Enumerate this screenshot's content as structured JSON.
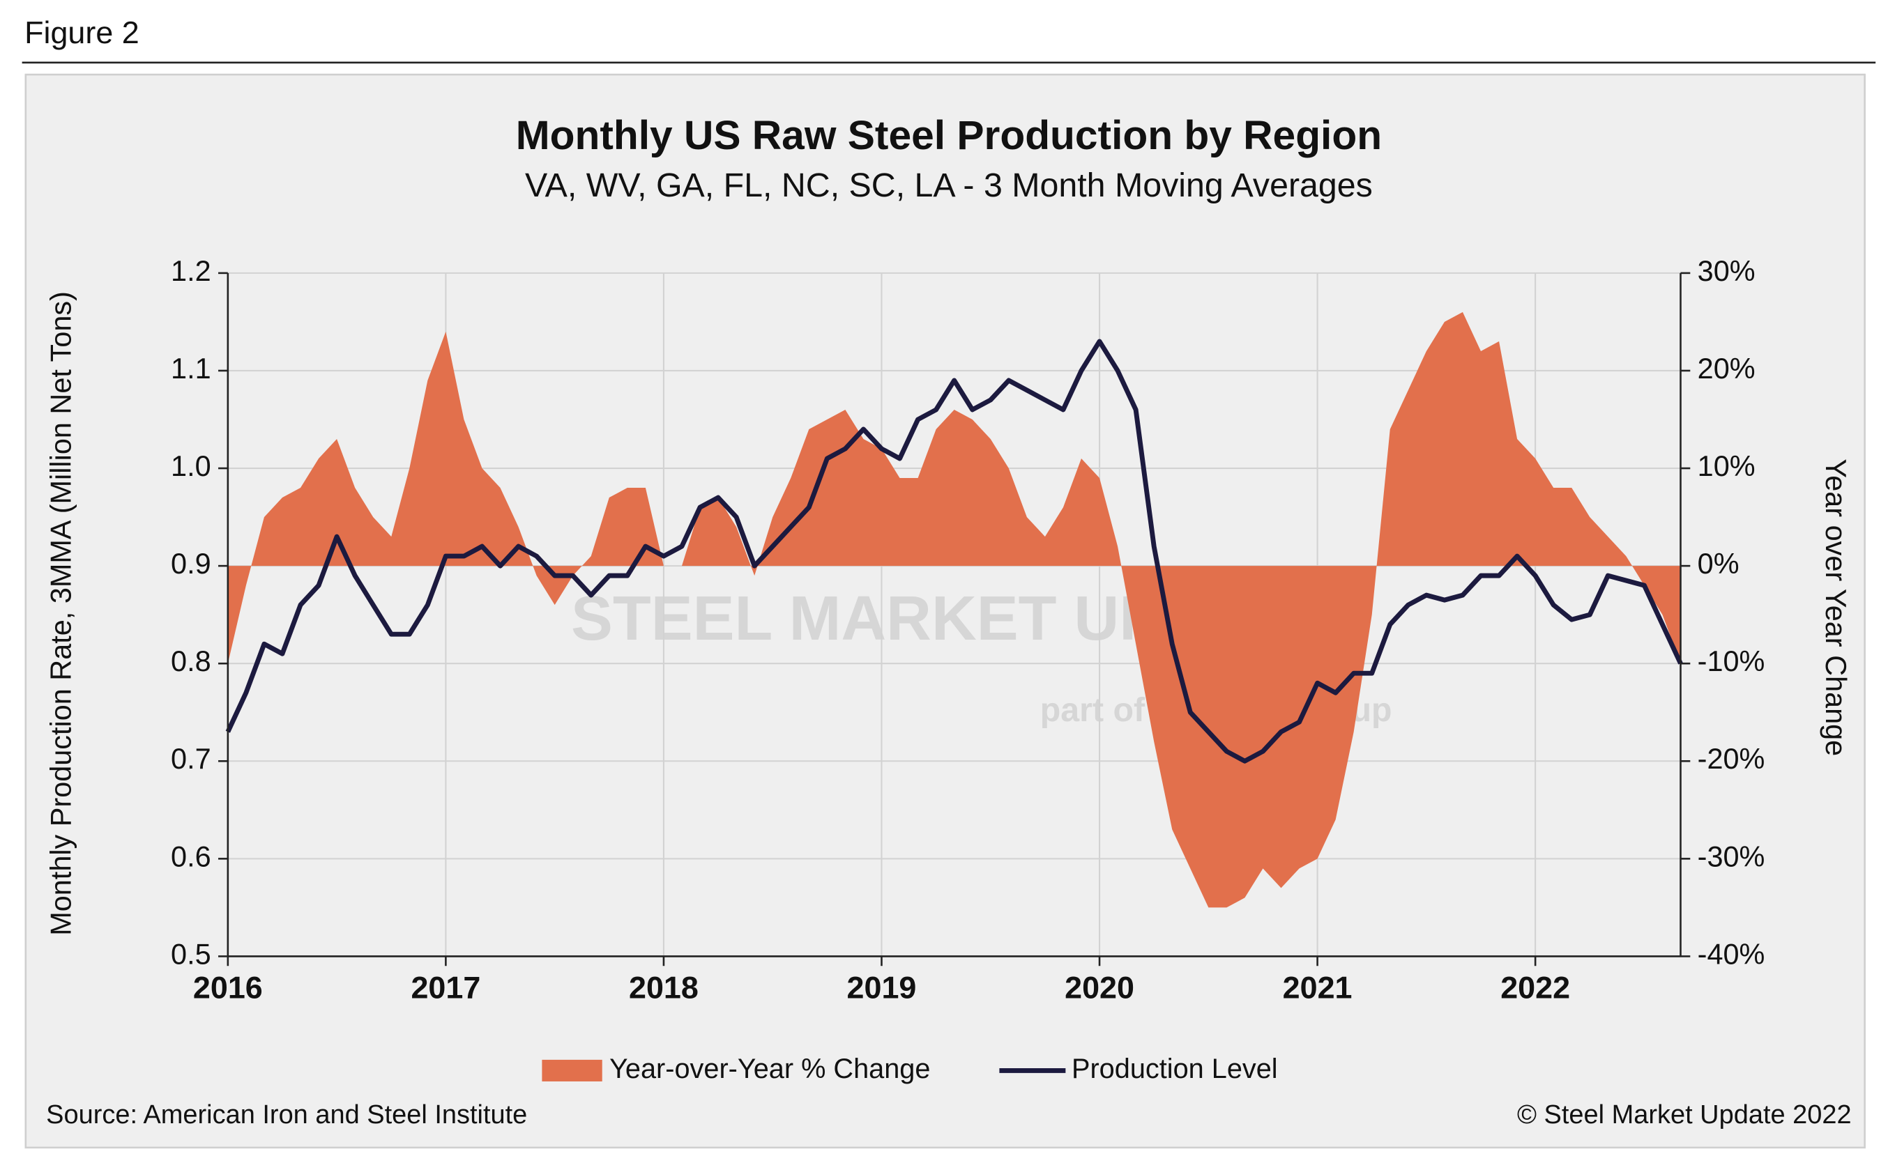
{
  "figure_label": "Figure 2",
  "chart_data": {
    "type": "combo",
    "title": "Monthly US Raw Steel Production by Region",
    "subtitle": "VA, WV, GA, FL, NC, SC, LA - 3 Month Moving Averages",
    "ylabel": "Monthly Production Rate, 3MMA (Million Net Tons)",
    "y2label": "Year over Year Change",
    "categories": [
      "2016",
      null,
      null,
      null,
      null,
      null,
      null,
      null,
      null,
      null,
      null,
      null,
      "2017",
      null,
      null,
      null,
      null,
      null,
      null,
      null,
      null,
      null,
      null,
      null,
      "2018",
      null,
      null,
      null,
      null,
      null,
      null,
      null,
      null,
      null,
      null,
      null,
      "2019",
      null,
      null,
      null,
      null,
      null,
      null,
      null,
      null,
      null,
      null,
      null,
      "2020",
      null,
      null,
      null,
      null,
      null,
      null,
      null,
      null,
      null,
      null,
      null,
      "2021",
      null,
      null,
      null,
      null,
      null,
      null,
      null,
      null,
      null,
      null,
      null,
      "2022",
      null,
      null,
      null,
      null,
      null,
      null,
      null,
      null
    ],
    "ylim": [
      0.5,
      1.2
    ],
    "yticks": [
      0.5,
      0.6,
      0.7,
      0.8,
      0.9,
      {
        "value": 1,
        "label": "1.0"
      },
      1.1,
      1.2
    ],
    "y2lim": [
      -40,
      30
    ],
    "y2ticks": [
      {
        "value": -40,
        "label": "-40%"
      },
      {
        "value": -30,
        "label": "-30%"
      },
      {
        "value": -20,
        "label": "-20%"
      },
      {
        "value": -10,
        "label": "-10%"
      },
      {
        "value": 0,
        "label": "0%"
      },
      {
        "value": 10,
        "label": "10%"
      },
      {
        "value": 20,
        "label": "20%"
      },
      {
        "value": 30,
        "label": "30%"
      }
    ],
    "grid": true,
    "legend": "bottom",
    "series": [
      {
        "name": "Year-over-Year % Change",
        "type": "area",
        "axis": "y2",
        "color": "#e2704c",
        "values": [
          -10,
          -2,
          5,
          7,
          8,
          11,
          13,
          8,
          5,
          3,
          10,
          19,
          24,
          15,
          10,
          8,
          4,
          -1,
          -4,
          -1,
          1,
          7,
          8,
          8,
          0,
          0,
          6,
          7,
          4,
          -1,
          5,
          9,
          14,
          15,
          16,
          13,
          12,
          9,
          9,
          14,
          16,
          15,
          13,
          10,
          5,
          3,
          6,
          11,
          9,
          2,
          -8,
          -18,
          -27,
          -31,
          -35,
          -35,
          -34,
          -31,
          -33,
          -31,
          -30,
          -26,
          -17,
          -5,
          14,
          18,
          22,
          25,
          26,
          22,
          23,
          13,
          11,
          8,
          8,
          5,
          3,
          1,
          -2,
          -5,
          -10
        ]
      },
      {
        "name": "Production Level",
        "type": "line",
        "color": "#1c1a3f",
        "values": [
          0.73,
          0.77,
          0.82,
          0.81,
          0.86,
          0.88,
          0.93,
          0.89,
          0.86,
          0.83,
          0.83,
          0.86,
          0.91,
          0.91,
          0.92,
          0.9,
          0.92,
          0.91,
          0.89,
          0.89,
          0.87,
          0.89,
          0.89,
          0.92,
          0.91,
          0.92,
          0.96,
          0.97,
          0.95,
          0.9,
          0.92,
          0.94,
          0.96,
          1.01,
          1.02,
          1.04,
          1.02,
          1.01,
          1.05,
          1.06,
          1.09,
          1.06,
          1.07,
          1.09,
          1.08,
          1.07,
          1.06,
          1.1,
          1.13,
          1.1,
          1.06,
          0.92,
          0.82,
          0.75,
          0.73,
          0.71,
          0.7,
          0.71,
          0.73,
          0.74,
          0.78,
          0.77,
          0.79,
          0.79,
          0.84,
          0.86,
          0.87,
          0.865,
          0.87,
          0.89,
          0.89,
          0.91,
          0.89,
          0.86,
          0.845,
          0.85,
          0.89,
          0.885,
          0.88,
          0.84,
          0.8
        ]
      }
    ],
    "watermark": [
      "STEEL MARKET UPDATE",
      "part of the CRU group"
    ],
    "source": "Source: American Iron and Steel Institute",
    "copyright": "© Steel Market Update 2022"
  }
}
